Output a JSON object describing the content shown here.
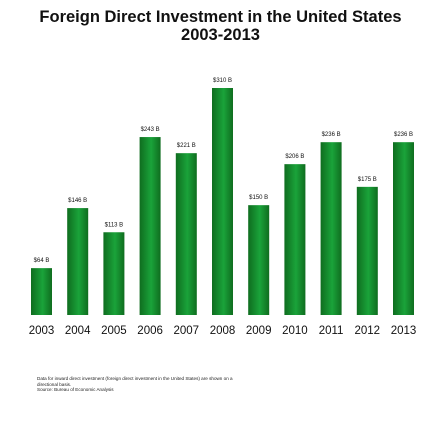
{
  "title_line1": "Foreign Direct Investment in the United States",
  "title_line2": "2003-2013",
  "colors": {
    "bar_dark": "#0f6d1f",
    "bar_light": "#1aa33a",
    "background": "#ffffff",
    "text": "#111111"
  },
  "chart_data": {
    "type": "bar",
    "title": "Foreign Direct Investment in the United States 2003-2013",
    "categories": [
      "2003",
      "2004",
      "2005",
      "2006",
      "2007",
      "2008",
      "2009",
      "2010",
      "2011",
      "2012",
      "2013"
    ],
    "values": [
      64,
      146,
      113,
      243,
      221,
      310,
      150,
      206,
      236,
      175,
      236
    ],
    "data_labels": [
      "$64 B",
      "$146 B",
      "$113 B",
      "$243 B",
      "$221 B",
      "$310 B",
      "$150 B",
      "$206 B",
      "$236 B",
      "$175 B",
      "$236 B"
    ],
    "ylim": [
      0,
      330
    ],
    "grid": false,
    "legend": "none"
  },
  "footnote": {
    "line1": "Data for inward direct investment (foreign direct investment in the United States) are shown on a",
    "line2": "directional basis.",
    "line3": "Source: Bureau of Economic Analysis"
  }
}
